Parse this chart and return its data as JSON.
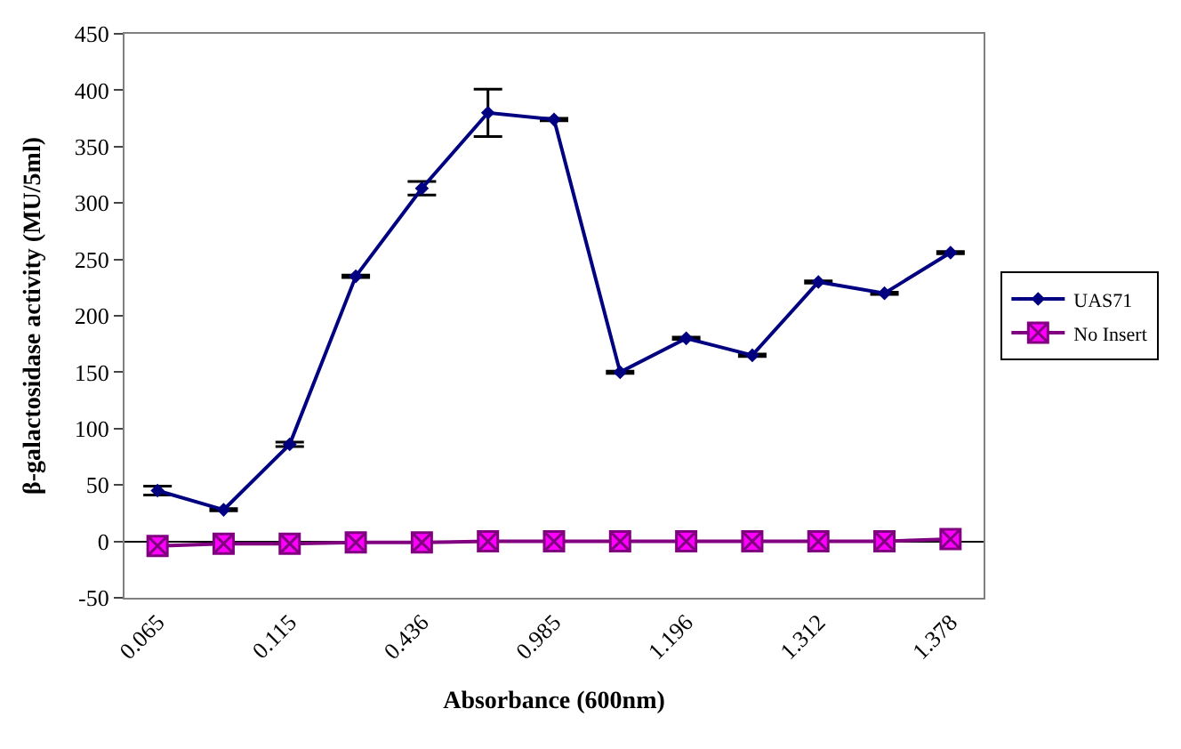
{
  "chart_data": {
    "type": "line",
    "xlabel": "Absorbance (600nm)",
    "ylabel": "β-galactosidase activity (MU/5ml)",
    "categories": [
      "0.065",
      null,
      "0.115",
      null,
      "0.436",
      null,
      "0.985",
      null,
      "1.196",
      null,
      "1.312",
      null,
      "1.378"
    ],
    "series": [
      {
        "name": "UAS71",
        "color": "#000080",
        "marker": "diamond",
        "values": [
          45,
          28,
          86,
          235,
          313,
          380,
          374,
          150,
          180,
          165,
          230,
          220,
          256
        ],
        "errors": [
          4,
          1,
          2,
          1,
          6,
          21,
          1,
          1,
          1,
          1,
          1,
          1,
          1
        ]
      },
      {
        "name": "No Insert",
        "color": "#800080",
        "marker": "cross",
        "values": [
          -4,
          -2,
          -2,
          -1,
          -1,
          0,
          0,
          0,
          0,
          0,
          0,
          0,
          2
        ]
      }
    ],
    "ylim": [
      -50,
      450
    ],
    "yticks": [
      -50,
      0,
      50,
      100,
      150,
      200,
      250,
      300,
      350,
      400,
      450
    ],
    "legend": "right",
    "line_style": "solid"
  }
}
